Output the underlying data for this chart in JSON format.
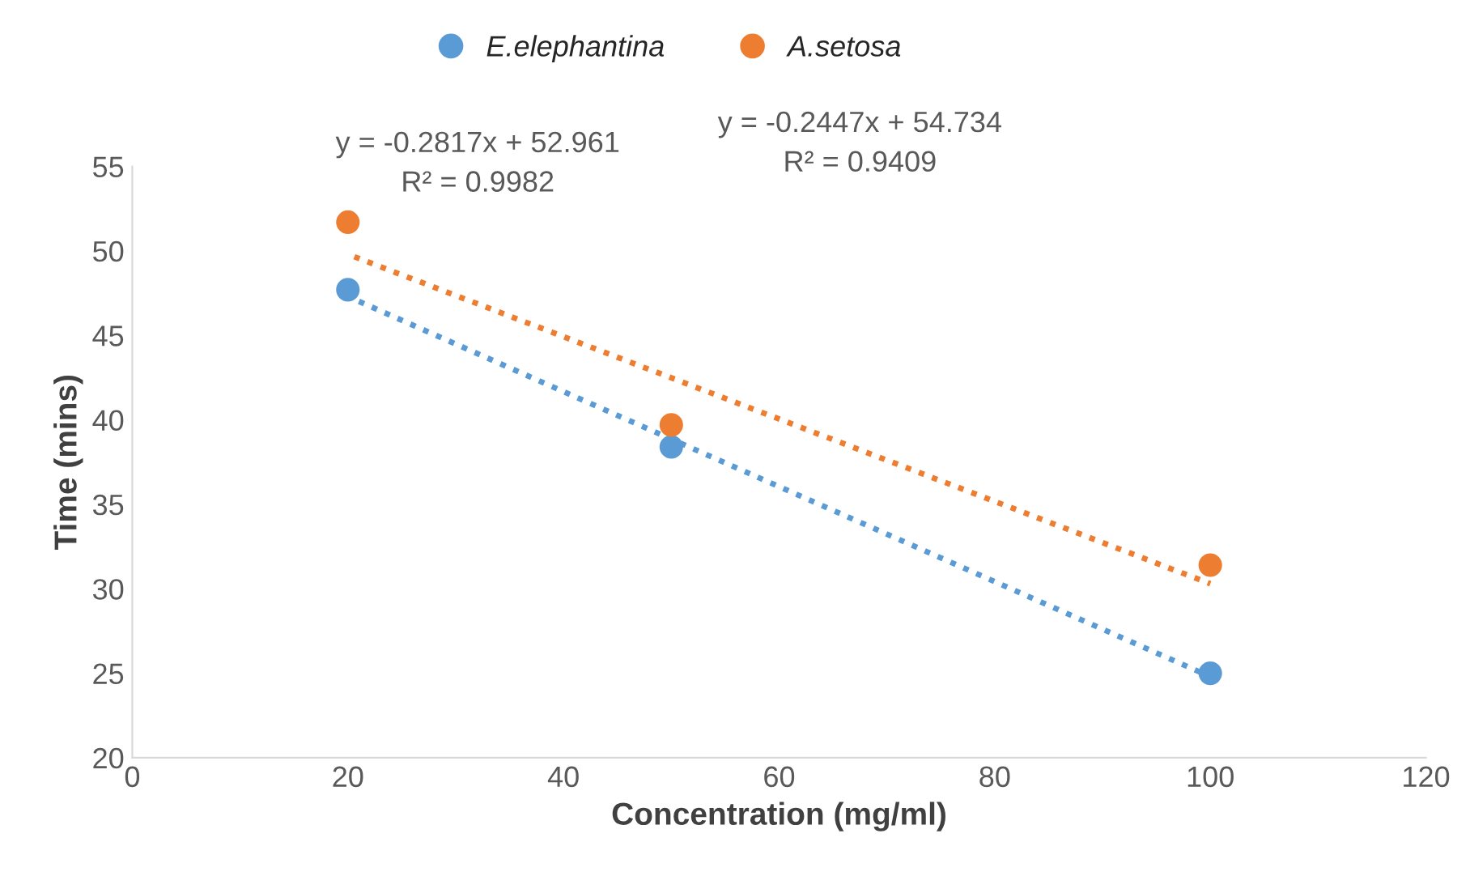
{
  "chart_data": {
    "type": "scatter",
    "xlabel": "Concentration (mg/ml)",
    "ylabel": "Time (mins)",
    "xlim": [
      0,
      120
    ],
    "xticks": [
      0,
      20,
      40,
      60,
      80,
      100,
      120
    ],
    "ylim": [
      20,
      55
    ],
    "yticks": [
      20,
      25,
      30,
      35,
      40,
      45,
      50,
      55
    ],
    "grid": false,
    "legend": "top",
    "marker": "circle",
    "series": [
      {
        "name": "E.elephantina",
        "color": "#5b9bd5",
        "x": [
          20,
          50,
          100
        ],
        "values": [
          47.7,
          38.4,
          25.0
        ]
      },
      {
        "name": "A.setosa",
        "color": "#ed7d31",
        "x": [
          20,
          50,
          100
        ],
        "values": [
          51.7,
          39.7,
          31.4
        ]
      },
      {
        "type": "line",
        "color": "#5b9bd5",
        "x": [
          20,
          100
        ],
        "values": [
          47.3,
          24.8
        ],
        "line_style": "dotted",
        "marker": "none"
      },
      {
        "type": "line",
        "color": "#ed7d31",
        "x": [
          20,
          100
        ],
        "values": [
          49.8,
          30.3
        ],
        "line_style": "dotted",
        "marker": "none"
      }
    ],
    "annotations": [
      "y = -0.2817x + 52.961",
      "R² = 0.9982",
      "y = -0.2447x + 54.734",
      "R² = 0.9409"
    ]
  }
}
